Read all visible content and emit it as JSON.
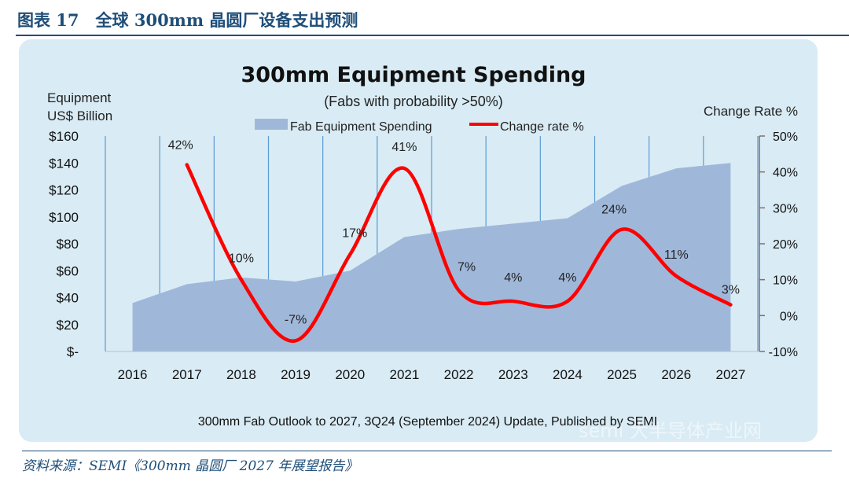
{
  "figure": {
    "header": "图表 17　全球 300mm 晶圆厂设备支出预测",
    "source_note": "资料来源：SEMI《300mm 晶圆厂 2027 年展望报告》",
    "watermark": "semi 大半导体产业网"
  },
  "chart_data": {
    "type": "area+line",
    "title": "300mm Equipment Spending",
    "subtitle": "(Fabs with probability >50%)",
    "ylabel_left": "Equipment\nUS$ Billion",
    "ylabel_right": "Change Rate %",
    "source_caption": "300mm Fab Outlook to 2027, 3Q24 (September 2024) Update, Published by SEMI",
    "categories": [
      "2016",
      "2017",
      "2018",
      "2019",
      "2020",
      "2021",
      "2022",
      "2023",
      "2024",
      "2025",
      "2026",
      "2027"
    ],
    "y_left": {
      "min": 0,
      "max": 160,
      "step": 20,
      "tick_labels": [
        "$-",
        "$20",
        "$40",
        "$60",
        "$80",
        "$100",
        "$120",
        "$140",
        "$160"
      ]
    },
    "y_right": {
      "min": -10,
      "max": 50,
      "step": 10,
      "tick_labels": [
        "-10%",
        "0%",
        "10%",
        "20%",
        "30%",
        "40%",
        "50%"
      ]
    },
    "series": [
      {
        "name": "Fab Equipment Spending",
        "kind": "area",
        "axis": "left",
        "color": "#9fb8da",
        "values": [
          36,
          50,
          55,
          52,
          60,
          85,
          91,
          95,
          99,
          123,
          136,
          140
        ]
      },
      {
        "name": "Change rate %",
        "kind": "line",
        "axis": "right",
        "color": "#ff0000",
        "values": [
          null,
          42,
          10,
          -7,
          17,
          41,
          7,
          4,
          4,
          24,
          11,
          3
        ],
        "labels": [
          "",
          "42%",
          "10%",
          "-7%",
          "17%",
          "41%",
          "7%",
          "4%",
          "4%",
          "24%",
          "11%",
          "3%"
        ]
      }
    ],
    "grid": "vertical",
    "legend_position": "top"
  }
}
